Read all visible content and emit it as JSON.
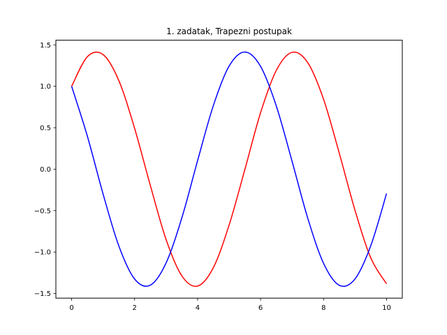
{
  "chart_data": {
    "type": "line",
    "title": "1. zadatak, Trapezni postupak",
    "xlabel": "",
    "ylabel": "",
    "xlim": [
      -0.5,
      10.5
    ],
    "ylim": [
      -1.556,
      1.556
    ],
    "xticks": [
      0,
      2,
      4,
      6,
      8,
      10
    ],
    "xtick_labels": [
      "0",
      "2",
      "4",
      "6",
      "8",
      "10"
    ],
    "yticks": [
      -1.5,
      -1.0,
      -0.5,
      0.0,
      0.5,
      1.0,
      1.5
    ],
    "ytick_labels": [
      "−1.5",
      "−1.0",
      "−0.5",
      "0.0",
      "0.5",
      "1.0",
      "1.5"
    ],
    "grid": false,
    "x": [
      0,
      0.5,
      1,
      1.5,
      2,
      2.5,
      3,
      3.5,
      4,
      4.5,
      5,
      5.5,
      6,
      6.5,
      7,
      7.5,
      8,
      8.5,
      9,
      9.5,
      10
    ],
    "series": [
      {
        "color": "#ff0000",
        "values": [
          1.0,
          1.357,
          1.382,
          1.068,
          0.493,
          -0.197,
          -0.849,
          -1.287,
          -1.41,
          -1.188,
          -0.675,
          -0.005,
          0.681,
          1.192,
          1.41,
          1.284,
          0.843,
          0.191,
          -0.498,
          -1.071,
          -1.383
        ]
      },
      {
        "color": "#0000ff",
        "values": [
          1.0,
          0.398,
          -0.301,
          -0.927,
          -1.325,
          -1.399,
          -1.131,
          -0.587,
          0.103,
          0.767,
          1.243,
          1.414,
          1.24,
          0.761,
          0.095,
          -0.594,
          -1.136,
          -1.401,
          -1.323,
          -0.922,
          -0.294
        ]
      }
    ]
  }
}
